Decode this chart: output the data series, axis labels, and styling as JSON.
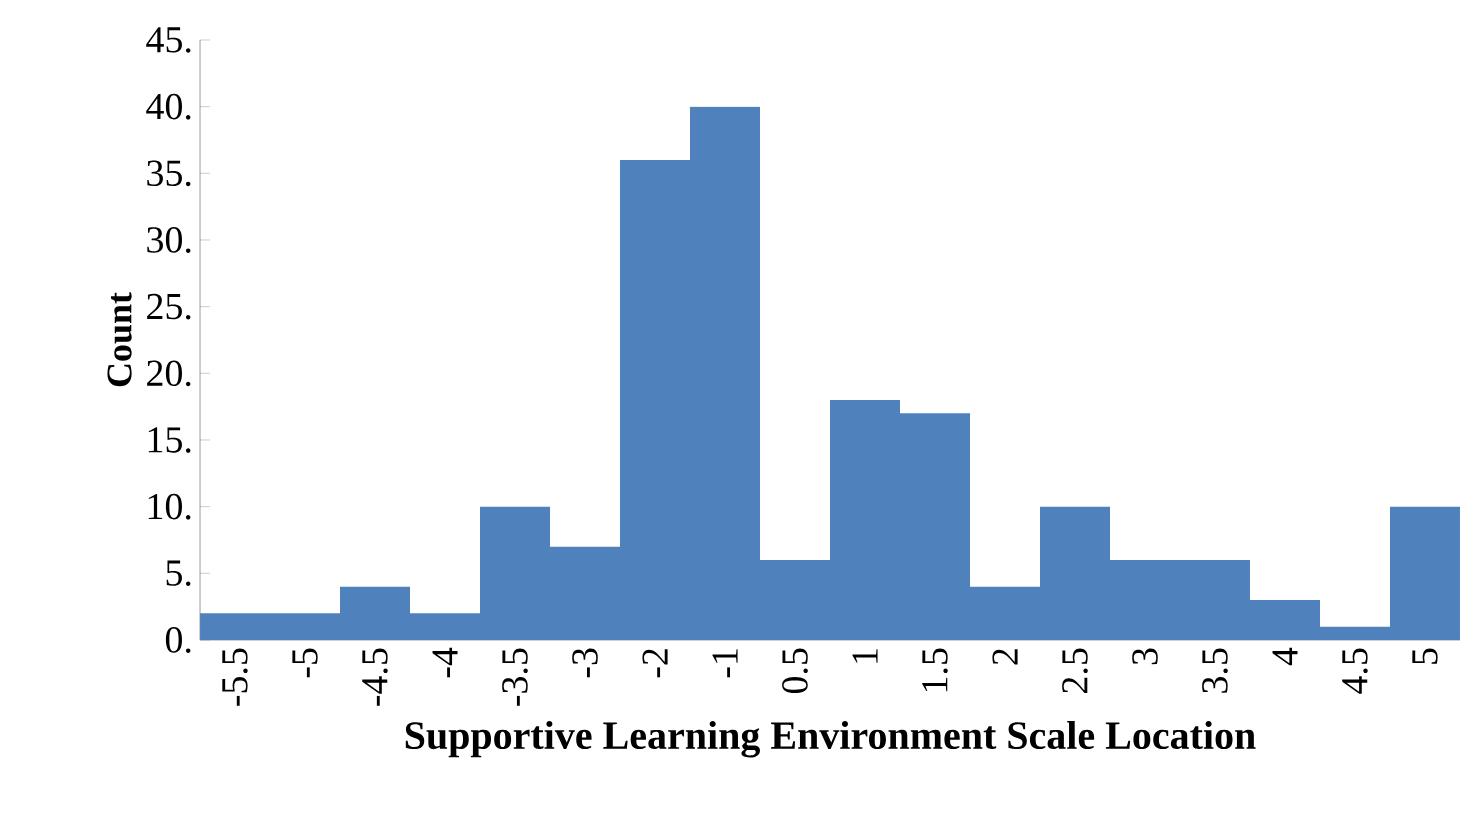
{
  "chart_data": {
    "type": "bar",
    "xlabel": "Supportive Learning Environment Scale Location",
    "ylabel": "Count",
    "categories": [
      "-5.5",
      "-5",
      "-4.5",
      "-4",
      "-3.5",
      "-3",
      "-2",
      "-1",
      "0.5",
      "1",
      "1.5",
      "2",
      "2.5",
      "3",
      "3.5",
      "4",
      "4.5",
      "5"
    ],
    "values": [
      2,
      2,
      4,
      2,
      10,
      7,
      36,
      40,
      6,
      18,
      17,
      4,
      10,
      6,
      6,
      3,
      1,
      10
    ],
    "color": "#4f81bd",
    "ylim": [
      0,
      45
    ],
    "yticks": [
      {
        "value": 0,
        "label": "0."
      },
      {
        "value": 5,
        "label": "5."
      },
      {
        "value": 10,
        "label": "10."
      },
      {
        "value": 15,
        "label": "15."
      },
      {
        "value": 20,
        "label": "20."
      },
      {
        "value": 25,
        "label": "25."
      },
      {
        "value": 30,
        "label": "30."
      },
      {
        "value": 35,
        "label": "35."
      },
      {
        "value": 40,
        "label": "40."
      },
      {
        "value": 45,
        "label": "45."
      }
    ],
    "grid": false
  }
}
